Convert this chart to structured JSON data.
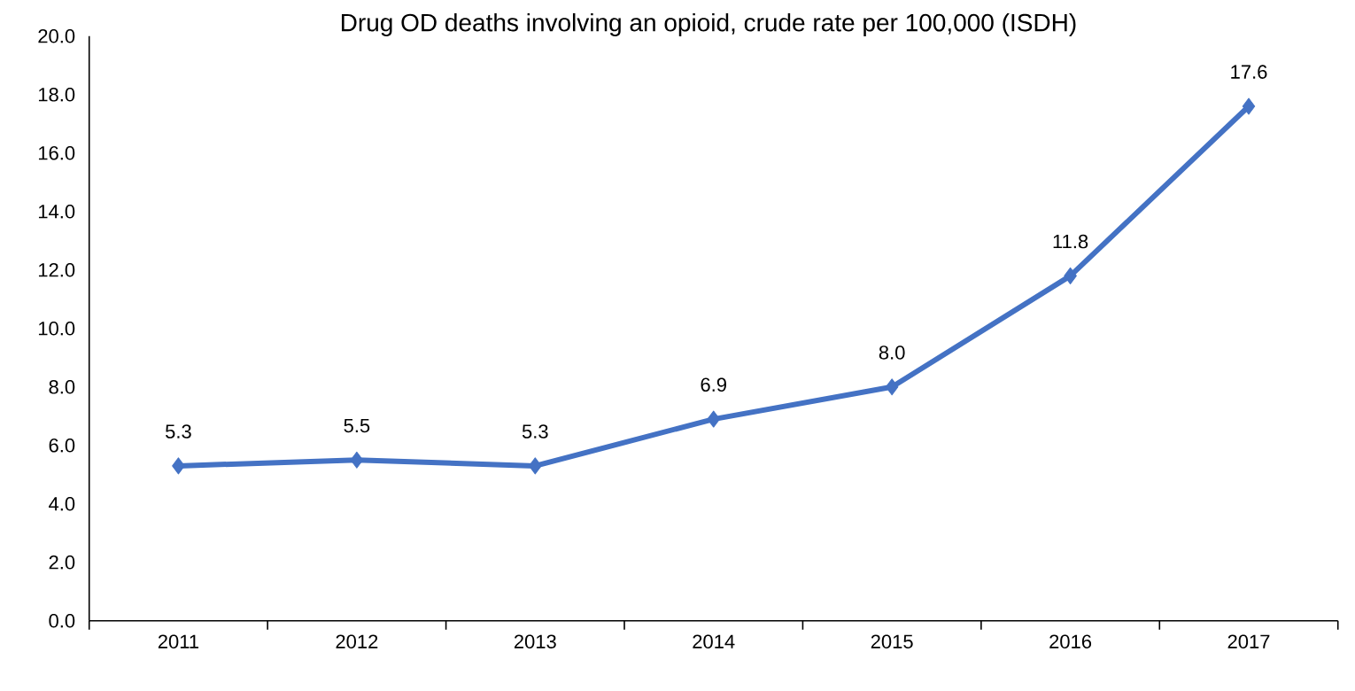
{
  "chart_data": {
    "type": "line",
    "title": "Drug OD deaths involving an opioid, crude rate per 100,000 (ISDH)",
    "categories": [
      "2011",
      "2012",
      "2013",
      "2014",
      "2015",
      "2016",
      "2017"
    ],
    "series": [
      {
        "color": "#4472c4",
        "values": [
          5.3,
          5.5,
          5.3,
          6.9,
          8.0,
          11.8,
          17.6
        ],
        "value_labels": [
          "5.3",
          "5.5",
          "5.3",
          "6.9",
          "8.0",
          "11.8",
          "17.6"
        ]
      }
    ],
    "ylim": [
      0,
      20
    ],
    "yticks": [
      {
        "value": 0,
        "label": "0.0"
      },
      {
        "value": 2,
        "label": "2.0"
      },
      {
        "value": 4,
        "label": "4.0"
      },
      {
        "value": 6,
        "label": "6.0"
      },
      {
        "value": 8,
        "label": "8.0"
      },
      {
        "value": 10,
        "label": "10.0"
      },
      {
        "value": 12,
        "label": "12.0"
      },
      {
        "value": 14,
        "label": "14.0"
      },
      {
        "value": 16,
        "label": "16.0"
      },
      {
        "value": 18,
        "label": "18.0"
      },
      {
        "value": 20,
        "label": "20.0"
      }
    ],
    "marker": "diamond"
  }
}
